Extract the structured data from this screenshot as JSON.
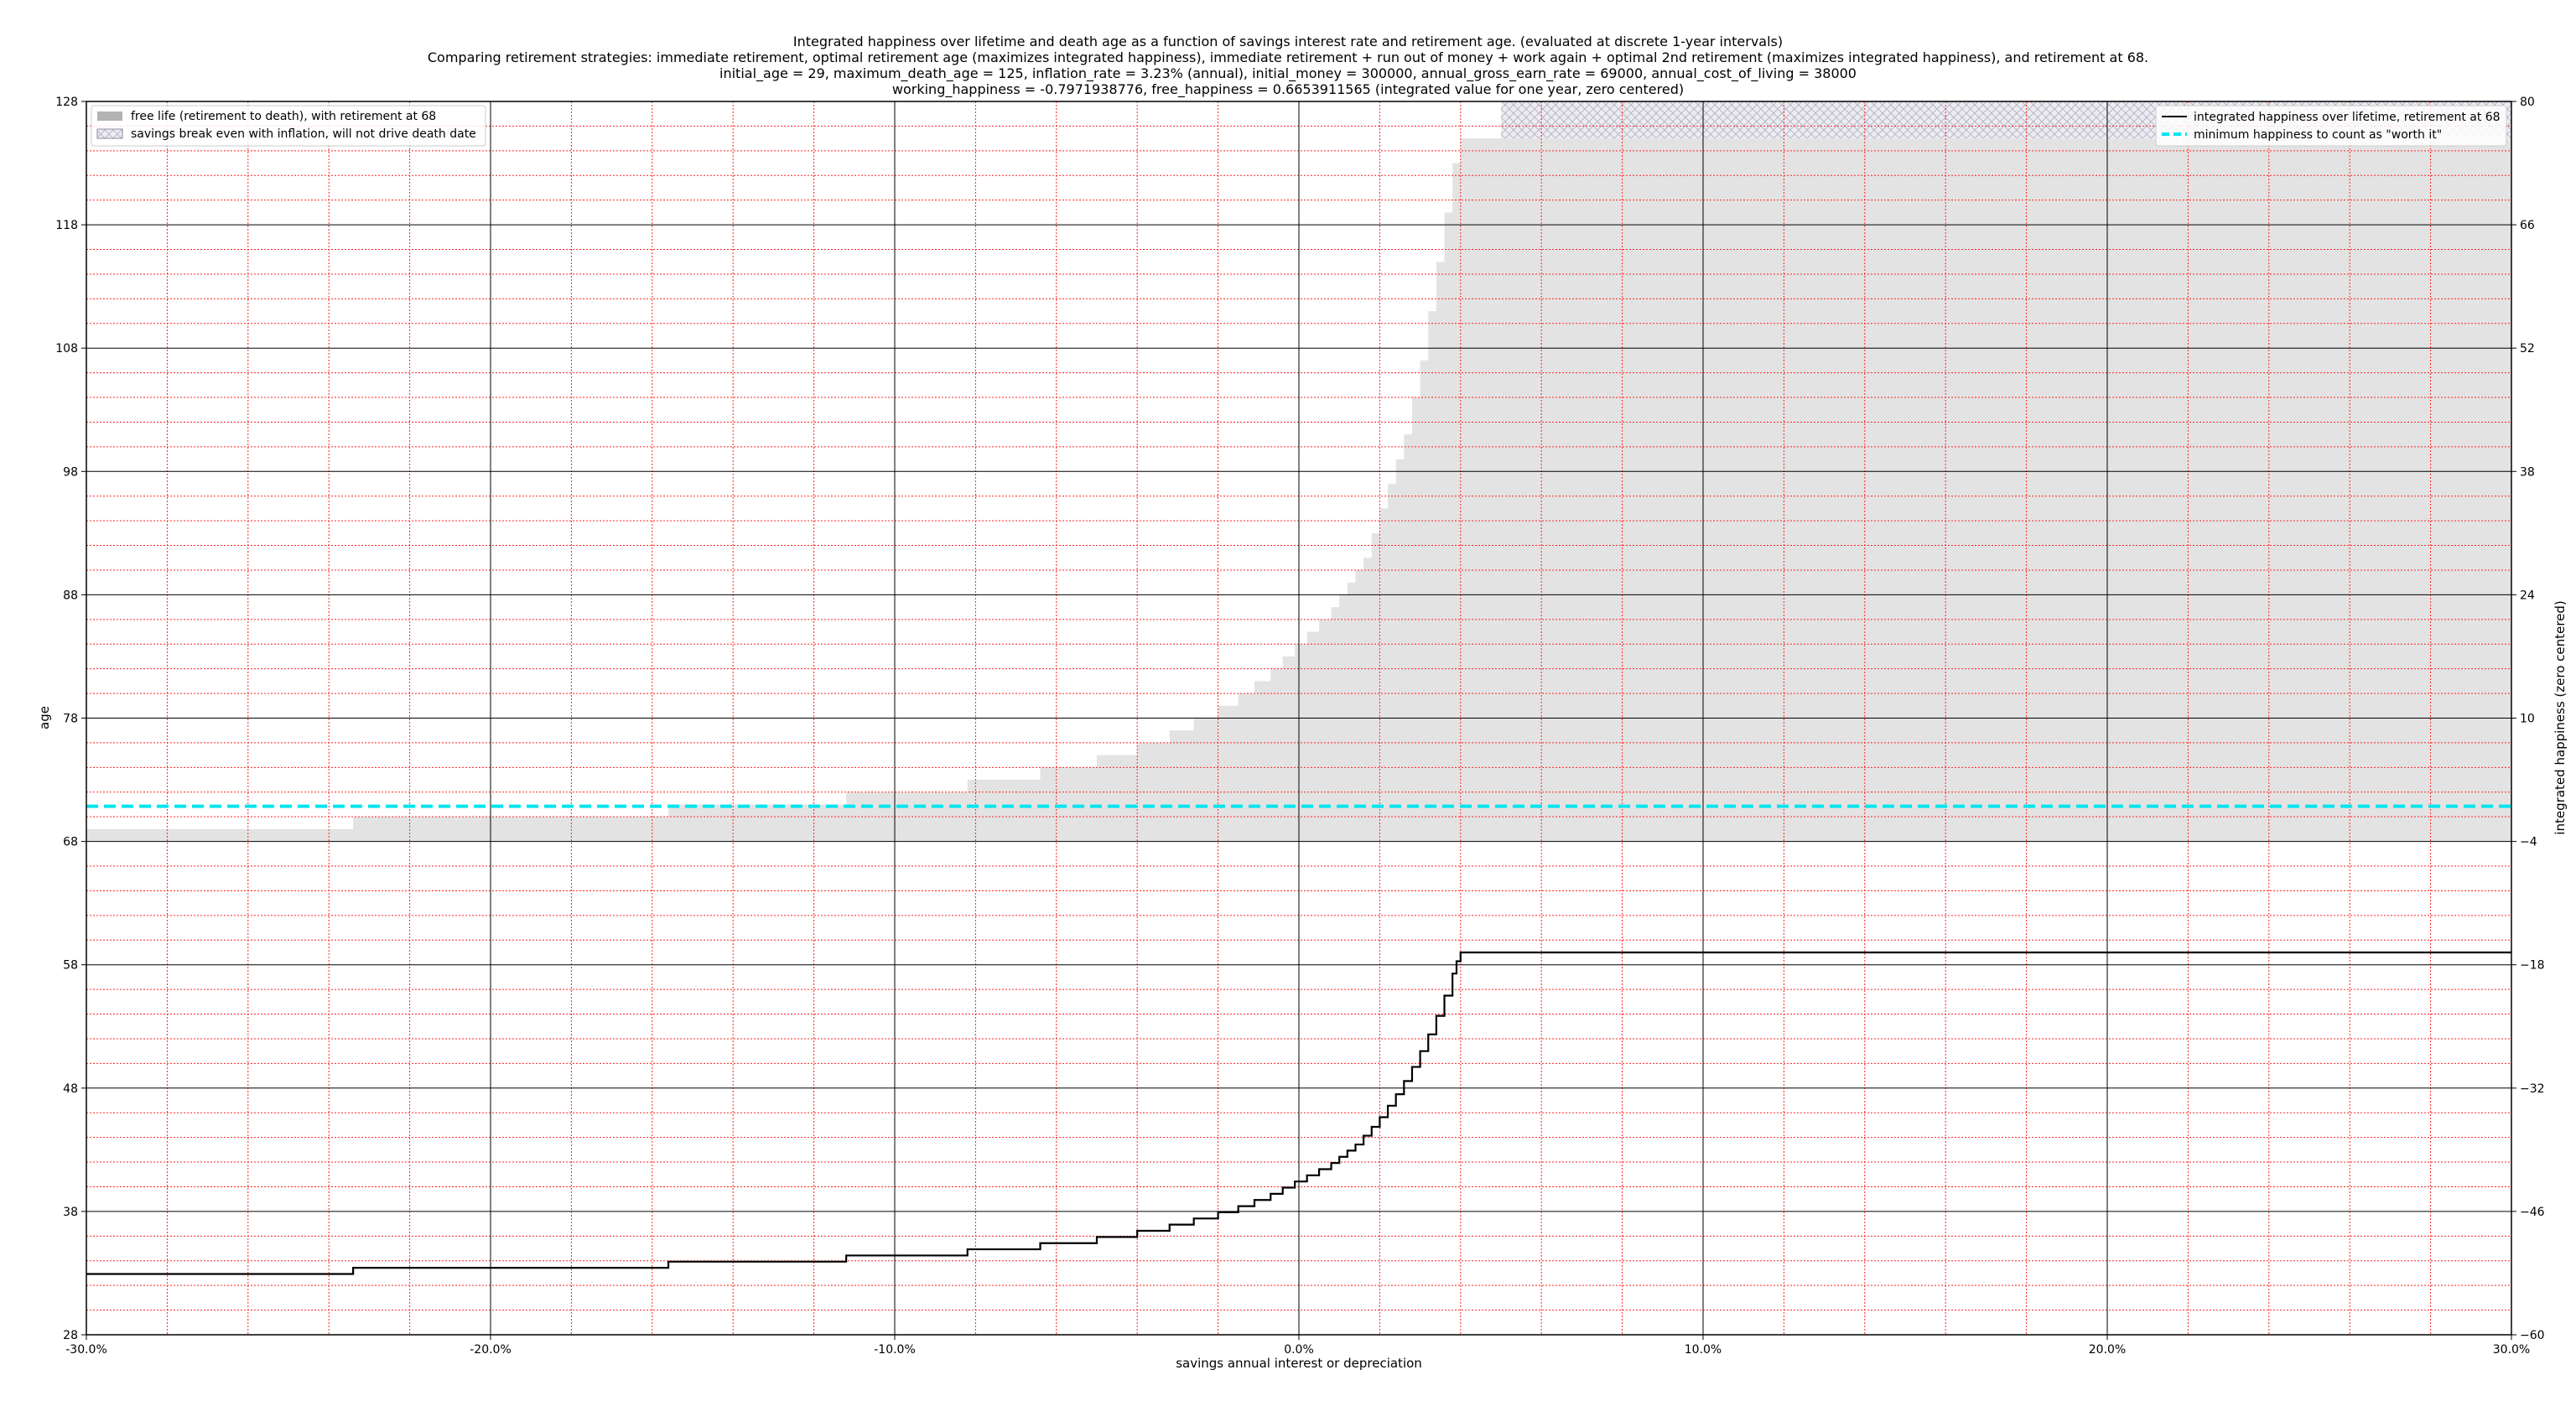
{
  "chart_data": {
    "type": "line",
    "title_lines": [
      "Integrated happiness over lifetime and death age as a function of savings interest rate and retirement age. (evaluated at discrete 1-year intervals)",
      "Comparing retirement strategies: immediate retirement, optimal retirement age (maximizes integrated happiness), immediate retirement + run out of money + work again + optimal 2nd retirement (maximizes integrated happiness), and retirement at 68.",
      "initial_age = 29, maximum_death_age = 125, inflation_rate = 3.23% (annual), initial_money = 300000, annual_gross_earn_rate = 69000, annual_cost_of_living = 38000",
      "working_happiness = -0.7971938776, free_happiness = 0.6653911565 (integrated value for one year, zero centered)"
    ],
    "xlabel": "savings annual interest or depreciation",
    "ylabel_left": "age",
    "ylabel_right": "integrated happiness (zero centered)",
    "xlim": [
      -30,
      30
    ],
    "ylim_left": [
      28,
      128
    ],
    "ylim_right": [
      -60,
      80
    ],
    "x_ticks": [
      -30,
      -20,
      -10,
      0,
      10,
      20,
      30
    ],
    "x_tick_labels": [
      "-30.0%",
      "-20.0%",
      "-10.0%",
      "0.0%",
      "10.0%",
      "20.0%",
      "30.0%"
    ],
    "y_ticks_left": [
      28,
      38,
      48,
      58,
      68,
      78,
      88,
      98,
      108,
      118,
      128
    ],
    "y_tick_labels_left": [
      "28",
      "38",
      "48",
      "58",
      "68",
      "78",
      "88",
      "98",
      "108",
      "118",
      "128"
    ],
    "y_ticks_right": [
      -60,
      -46,
      -32,
      -18,
      -4,
      10,
      24,
      38,
      52,
      66,
      80
    ],
    "y_tick_labels_right": [
      "−60",
      "−46",
      "−32",
      "−18",
      "−4",
      "10",
      "24",
      "38",
      "52",
      "66",
      "80"
    ],
    "grid": "major black solid, minor red dotted",
    "legend_left": {
      "placement": "upper-left",
      "entries": [
        "free life (retirement to death), with retirement at 68",
        "savings break even with inflation, will not drive death date"
      ]
    },
    "legend_right": {
      "placement": "upper-right",
      "entries": [
        "integrated happiness over lifetime, retirement at 68",
        "minimum happiness to count as \"worth it\""
      ]
    },
    "colors": {
      "fill": "#e3e3e3",
      "hatch": "#b8b8c8",
      "line": "#000000",
      "threshold": "#00e5ee",
      "minor_grid": "#ff2222",
      "major_grid": "#000000"
    },
    "retirement_age": 68,
    "threshold_happiness": 0,
    "series": [
      {
        "name": "free life (retirement to death), with retirement at 68",
        "axis": "left",
        "style": "filled-step",
        "x": [
          -30,
          -23.4,
          -15.6,
          -11.2,
          -8.2,
          -6.4,
          -5.0,
          -4.0,
          -3.2,
          -2.6,
          -2.0,
          -1.5,
          -1.1,
          -0.7,
          -0.4,
          -0.1,
          0.2,
          0.5,
          0.8,
          1.0,
          1.2,
          1.4,
          1.6,
          1.8,
          2.0,
          2.2,
          2.4,
          2.6,
          2.8,
          3.0,
          3.2,
          3.4,
          3.6,
          3.8,
          4.0,
          5.0,
          30
        ],
        "values": [
          69,
          70,
          71,
          72,
          73,
          74,
          75,
          76,
          77,
          78,
          79,
          80,
          81,
          82,
          83,
          84,
          85,
          86,
          87,
          88,
          89,
          90,
          91,
          93,
          95,
          97,
          99,
          101,
          104,
          107,
          111,
          115,
          119,
          123,
          125,
          125,
          125
        ]
      },
      {
        "name": "savings break even with inflation, will not drive death date",
        "axis": "left",
        "style": "hatched-band",
        "x": [
          5.0,
          30
        ],
        "values": [
          125,
          128
        ]
      },
      {
        "name": "integrated happiness over lifetime, retirement at 68",
        "axis": "right",
        "style": "step",
        "x": [
          -30,
          -23.4,
          -15.6,
          -11.2,
          -8.2,
          -6.4,
          -5.0,
          -4.0,
          -3.2,
          -2.6,
          -2.0,
          -1.5,
          -1.1,
          -0.7,
          -0.4,
          -0.1,
          0.2,
          0.5,
          0.8,
          1.0,
          1.2,
          1.4,
          1.6,
          1.8,
          2.0,
          2.2,
          2.4,
          2.6,
          2.8,
          3.0,
          3.2,
          3.4,
          3.6,
          3.8,
          3.9,
          4.0,
          30
        ],
        "values": [
          -53.1,
          -52.4,
          -51.7,
          -51.0,
          -50.3,
          -49.6,
          -48.9,
          -48.2,
          -47.5,
          -46.8,
          -46.1,
          -45.4,
          -44.7,
          -44.0,
          -43.3,
          -42.6,
          -41.9,
          -41.2,
          -40.5,
          -39.8,
          -39.1,
          -38.4,
          -37.4,
          -36.4,
          -35.3,
          -34.0,
          -32.7,
          -31.2,
          -29.6,
          -27.8,
          -25.9,
          -23.8,
          -21.5,
          -19.0,
          -17.6,
          -16.6,
          -16.6
        ]
      }
    ]
  }
}
